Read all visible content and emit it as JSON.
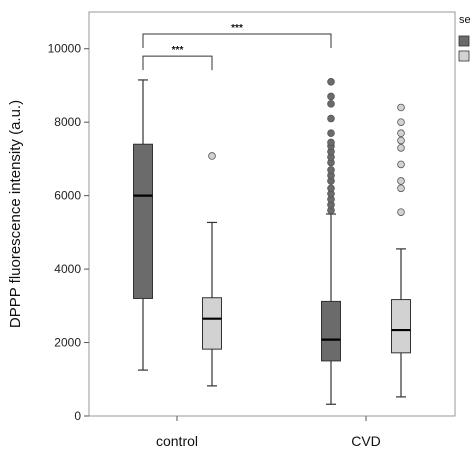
{
  "chart_data": {
    "type": "boxplot",
    "ylabel": "DPPP  fluorescence intensity (a.u.)",
    "ylim": [
      0,
      11000
    ],
    "yticks": [
      "0",
      "2000",
      "4000",
      "6000",
      "8000",
      "10000"
    ],
    "ytick_values": [
      0,
      2000,
      4000,
      6000,
      8000,
      10000
    ],
    "categories": [
      "control",
      "CVD"
    ],
    "legend": {
      "title": "se",
      "position": "top-right",
      "entries": [
        "",
        ""
      ]
    },
    "colors": {
      "group1": "#6b6b6b",
      "group2": "#d2d2d2"
    },
    "boxes": [
      {
        "category": "control",
        "group": 1,
        "whisker_low": 1250,
        "q1": 3200,
        "median": 6000,
        "q3": 7400,
        "whisker_high": 9150,
        "outliers": []
      },
      {
        "category": "control",
        "group": 2,
        "whisker_low": 820,
        "q1": 1820,
        "median": 2650,
        "q3": 3220,
        "whisker_high": 5270,
        "outliers": [
          7080
        ]
      },
      {
        "category": "CVD",
        "group": 1,
        "whisker_low": 320,
        "q1": 1500,
        "median": 2080,
        "q3": 3120,
        "whisker_high": 5500,
        "outliers": [
          5600,
          5750,
          5900,
          6050,
          6200,
          6400,
          6550,
          6700,
          6900,
          7050,
          7200,
          7350,
          7450,
          7700,
          8100,
          8500,
          8700,
          9100
        ]
      },
      {
        "category": "CVD",
        "group": 2,
        "whisker_low": 520,
        "q1": 1720,
        "median": 2340,
        "q3": 3170,
        "whisker_high": 4550,
        "outliers": [
          5550,
          6200,
          6400,
          6850,
          7300,
          7500,
          7700,
          8000,
          8400
        ]
      }
    ],
    "significance": [
      {
        "label": "***",
        "from_box": 0,
        "to_box": 1,
        "y": 9800
      },
      {
        "label": "***",
        "from_box": 0,
        "to_box": 2,
        "y": 10400
      }
    ]
  }
}
